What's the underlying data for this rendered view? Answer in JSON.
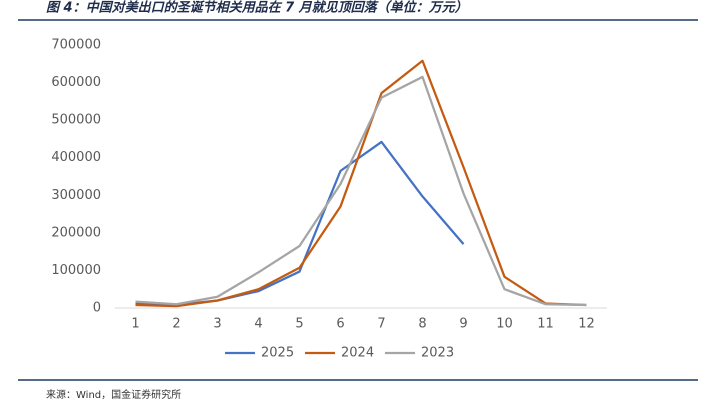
{
  "chart_data": {
    "type": "line",
    "title": "图 4：中国对美出口的圣诞节相关用品在 7 月就见顶回落（单位：万元）",
    "source": "来源：Wind，国金证券研究所",
    "categories": [
      "1",
      "2",
      "3",
      "4",
      "5",
      "6",
      "7",
      "8",
      "9",
      "10",
      "11",
      "12"
    ],
    "series": [
      {
        "name": "2025",
        "color": "#4472c4",
        "values": [
          12000,
          8000,
          20000,
          45000,
          97000,
          365000,
          442000,
          297000,
          170000,
          null,
          null,
          null
        ]
      },
      {
        "name": "2024",
        "color": "#c55a11",
        "values": [
          8000,
          5000,
          20000,
          50000,
          107000,
          270000,
          572000,
          658000,
          375000,
          83000,
          12000,
          8000
        ]
      },
      {
        "name": "2023",
        "color": "#a5a5a5",
        "values": [
          17000,
          10000,
          30000,
          95000,
          165000,
          330000,
          560000,
          615000,
          305000,
          50000,
          10000,
          8000
        ]
      }
    ],
    "ylim": [
      0,
      700000
    ],
    "yticks": [
      0,
      100000,
      200000,
      300000,
      400000,
      500000,
      600000,
      700000
    ],
    "grid": false,
    "legend": "bottom"
  }
}
